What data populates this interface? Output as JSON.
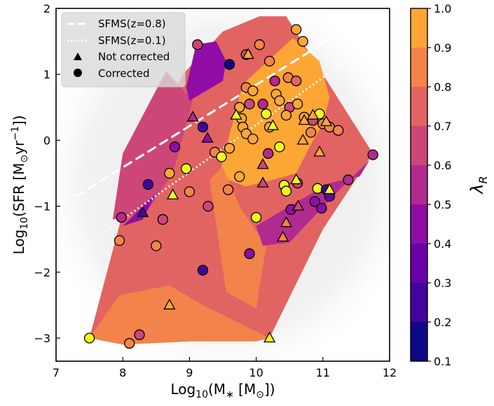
{
  "chart_data": {
    "type": "scatter",
    "xlabel": "Log10(M* [M⊙])",
    "ylabel": "Log10(SFR [M⊙yr⁻¹])",
    "xlim": [
      7,
      12
    ],
    "ylim": [
      -3.35,
      2
    ],
    "x_ticks": [
      "7",
      "8",
      "9",
      "10",
      "11",
      "12"
    ],
    "y_ticks": [
      "−3",
      "−2",
      "−1",
      "0",
      "1",
      "2"
    ],
    "x_tick_values": [
      7,
      8,
      9,
      10,
      11,
      12
    ],
    "y_tick_values": [
      -3,
      -2,
      -1,
      0,
      1,
      2
    ],
    "colorbar": {
      "label": "λR",
      "range": [
        0.1,
        1.0
      ],
      "ticks": [
        "0.1",
        "0.2",
        "0.3",
        "0.4",
        "0.5",
        "0.6",
        "0.7",
        "0.8",
        "0.9",
        "1.0"
      ],
      "tick_values": [
        0.1,
        0.2,
        0.3,
        0.4,
        0.5,
        0.6,
        0.7,
        0.8,
        0.9,
        1.0
      ],
      "levels": [
        {
          "from": 0.1,
          "to": 0.2,
          "color": "#0d0887"
        },
        {
          "from": 0.2,
          "to": 0.3,
          "color": "#41049d"
        },
        {
          "from": 0.3,
          "to": 0.4,
          "color": "#6a00a8"
        },
        {
          "from": 0.4,
          "to": 0.5,
          "color": "#8f0da4"
        },
        {
          "from": 0.5,
          "to": 0.6,
          "color": "#b12a90"
        },
        {
          "from": 0.6,
          "to": 0.7,
          "color": "#cc4778"
        },
        {
          "from": 0.7,
          "to": 0.8,
          "color": "#e16462"
        },
        {
          "from": 0.8,
          "to": 0.9,
          "color": "#f2844b"
        },
        {
          "from": 0.9,
          "to": 1.0,
          "color": "#fca636"
        },
        {
          "from": 1.0,
          "to": 1.1,
          "color": "#f0f921"
        }
      ]
    },
    "legend": {
      "placement": "top-left",
      "entries": [
        "SFMS(z=0.8)",
        "SFMS(z=0.1)",
        "Not corrected",
        "Corrected"
      ]
    },
    "lines": [
      {
        "name": "SFMS(z=0.8)",
        "style": "dashed",
        "x": [
          7.3,
          11.45
        ],
        "y": [
          -0.85,
          1.75
        ]
      },
      {
        "name": "SFMS(z=0.1)",
        "style": "dotted",
        "x": [
          7.3,
          11.6
        ],
        "y": [
          -1.7,
          1.38
        ]
      }
    ],
    "contour_regions": [
      {
        "lambda": 0.7,
        "x": [
          7.5,
          8.0,
          8.9,
          9.5,
          10.05,
          10.45,
          11.75,
          11.0,
          10.2,
          9.2,
          8.7,
          7.5
        ],
        "y": [
          -3.0,
          -1.1,
          1.0,
          1.65,
          1.88,
          1.88,
          -0.2,
          -1.35,
          -3.0,
          -2.95,
          -3.05,
          -3.0
        ]
      },
      {
        "lambda": 0.9,
        "x": [
          9.5,
          9.8,
          10.55,
          10.95,
          11.1,
          11.0,
          10.8,
          10.6,
          10.25,
          9.85,
          9.45,
          9.5
        ],
        "y": [
          -0.3,
          0.85,
          1.55,
          1.2,
          0.65,
          0.25,
          -0.1,
          -0.5,
          -0.6,
          -0.7,
          -0.55,
          -0.3
        ]
      },
      {
        "lambda": 0.8,
        "x": [
          9.3,
          9.5,
          9.75,
          10.15,
          10.0,
          9.55,
          9.3
        ],
        "y": [
          -0.6,
          -0.4,
          -1.0,
          -1.6,
          -2.55,
          -2.3,
          -0.6
        ]
      },
      {
        "lambda": 0.5,
        "x": [
          10.0,
          10.5,
          11.1,
          11.55,
          11.7,
          11.2,
          10.5,
          10.1,
          10.0
        ],
        "y": [
          -1.3,
          -1.0,
          -0.65,
          -0.55,
          -0.3,
          -0.8,
          -1.55,
          -1.6,
          -1.3
        ]
      },
      {
        "lambda": 0.6,
        "x": [
          7.85,
          8.35,
          8.75,
          9.05,
          8.65,
          8.0,
          7.85
        ],
        "y": [
          -1.2,
          -1.1,
          -0.5,
          0.6,
          1.05,
          -0.2,
          -1.2
        ]
      },
      {
        "lambda": 0.4,
        "x": [
          8.95,
          9.1,
          9.4,
          9.55,
          9.5,
          9.0,
          8.95
        ],
        "y": [
          0.8,
          1.45,
          1.5,
          1.2,
          0.9,
          0.6,
          0.8
        ]
      },
      {
        "lambda": 0.4,
        "x": [
          8.0,
          8.5,
          8.3,
          8.0
        ],
        "y": [
          -1.3,
          -0.8,
          -1.2,
          -1.3
        ]
      },
      {
        "lambda": 0.8,
        "x": [
          7.5,
          7.95,
          8.7,
          9.2,
          10.2,
          10.0,
          9.0,
          8.0,
          7.5
        ],
        "y": [
          -3.0,
          -2.35,
          -2.2,
          -2.5,
          -3.0,
          -3.05,
          -3.05,
          -3.1,
          -3.0
        ]
      }
    ],
    "corrected": [
      {
        "x": 7.5,
        "y": -3.0,
        "lambda": 1.0
      },
      {
        "x": 8.1,
        "y": -3.08,
        "lambda": 0.85
      },
      {
        "x": 8.25,
        "y": -2.95,
        "lambda": 0.65
      },
      {
        "x": 7.95,
        "y": -1.52,
        "lambda": 0.8
      },
      {
        "x": 7.98,
        "y": -1.17,
        "lambda": 0.5
      },
      {
        "x": 8.5,
        "y": -1.6,
        "lambda": 0.8
      },
      {
        "x": 8.6,
        "y": -1.2,
        "lambda": 0.6
      },
      {
        "x": 8.38,
        "y": -0.67,
        "lambda": 0.2
      },
      {
        "x": 8.7,
        "y": -0.5,
        "lambda": 0.9
      },
      {
        "x": 8.95,
        "y": -0.43,
        "lambda": 1.0
      },
      {
        "x": 9.0,
        "y": -0.78,
        "lambda": 0.8
      },
      {
        "x": 8.78,
        "y": -0.1,
        "lambda": 0.45
      },
      {
        "x": 9.2,
        "y": 0.2,
        "lambda": 0.2
      },
      {
        "x": 9.28,
        "y": -1.0,
        "lambda": 0.6
      },
      {
        "x": 9.2,
        "y": -1.97,
        "lambda": 0.25
      },
      {
        "x": 9.12,
        "y": 1.45,
        "lambda": 0.6
      },
      {
        "x": 9.6,
        "y": 1.15,
        "lambda": 0.15
      },
      {
        "x": 9.9,
        "y": -1.72,
        "lambda": 0.4
      },
      {
        "x": 10.0,
        "y": -1.17,
        "lambda": 1.0
      },
      {
        "x": 9.58,
        "y": -0.75,
        "lambda": 0.8
      },
      {
        "x": 9.6,
        "y": -0.12,
        "lambda": 0.9
      },
      {
        "x": 9.38,
        "y": -0.18,
        "lambda": 0.8
      },
      {
        "x": 9.48,
        "y": -0.25,
        "lambda": 1.0
      },
      {
        "x": 9.75,
        "y": -0.55,
        "lambda": 0.9
      },
      {
        "x": 9.85,
        "y": 1.3,
        "lambda": 0.65
      },
      {
        "x": 10.05,
        "y": 1.45,
        "lambda": 0.8
      },
      {
        "x": 9.85,
        "y": 0.8,
        "lambda": 0.8
      },
      {
        "x": 9.9,
        "y": 0.55,
        "lambda": 0.65
      },
      {
        "x": 9.75,
        "y": 0.5,
        "lambda": 0.9
      },
      {
        "x": 9.78,
        "y": 0.33,
        "lambda": 0.9
      },
      {
        "x": 9.8,
        "y": 0.2,
        "lambda": 0.9
      },
      {
        "x": 9.85,
        "y": 0.1,
        "lambda": 0.9
      },
      {
        "x": 9.95,
        "y": 0.75,
        "lambda": 0.9
      },
      {
        "x": 10.1,
        "y": 0.55,
        "lambda": 0.5
      },
      {
        "x": 10.15,
        "y": 0.4,
        "lambda": 1.0
      },
      {
        "x": 10.2,
        "y": 0.2,
        "lambda": 0.9
      },
      {
        "x": 10.18,
        "y": -0.2,
        "lambda": 0.5
      },
      {
        "x": 9.95,
        "y": 0.02,
        "lambda": 0.9
      },
      {
        "x": 10.2,
        "y": 1.2,
        "lambda": 0.8
      },
      {
        "x": 10.28,
        "y": 0.9,
        "lambda": 0.5
      },
      {
        "x": 10.3,
        "y": 0.7,
        "lambda": 0.9
      },
      {
        "x": 10.35,
        "y": 0.6,
        "lambda": 0.9
      },
      {
        "x": 10.48,
        "y": 0.95,
        "lambda": 0.85
      },
      {
        "x": 10.5,
        "y": 0.5,
        "lambda": 0.6
      },
      {
        "x": 10.45,
        "y": 0.38,
        "lambda": 0.9
      },
      {
        "x": 10.62,
        "y": 0.55,
        "lambda": 0.9
      },
      {
        "x": 10.6,
        "y": 1.68,
        "lambda": 0.95
      },
      {
        "x": 10.7,
        "y": 1.5,
        "lambda": 0.95
      },
      {
        "x": 10.6,
        "y": 0.9,
        "lambda": 0.7
      },
      {
        "x": 10.72,
        "y": 0.35,
        "lambda": 0.9
      },
      {
        "x": 10.82,
        "y": 0.12,
        "lambda": 0.8
      },
      {
        "x": 10.85,
        "y": 0.3,
        "lambda": 0.65
      },
      {
        "x": 10.95,
        "y": 0.4,
        "lambda": 1.0
      },
      {
        "x": 11.0,
        "y": 0.25,
        "lambda": 0.8
      },
      {
        "x": 11.1,
        "y": 0.2,
        "lambda": 0.8
      },
      {
        "x": 11.23,
        "y": 0.15,
        "lambda": 0.85
      },
      {
        "x": 10.35,
        "y": -0.1,
        "lambda": 1.0
      },
      {
        "x": 10.42,
        "y": -0.68,
        "lambda": 1.0
      },
      {
        "x": 10.45,
        "y": -0.77,
        "lambda": 1.0
      },
      {
        "x": 10.52,
        "y": -1.05,
        "lambda": 0.45
      },
      {
        "x": 10.62,
        "y": -0.65,
        "lambda": 0.6
      },
      {
        "x": 10.92,
        "y": -0.73,
        "lambda": 1.0
      },
      {
        "x": 10.88,
        "y": -0.93,
        "lambda": 0.4
      },
      {
        "x": 10.98,
        "y": -1.03,
        "lambda": 0.4
      },
      {
        "x": 11.05,
        "y": -0.75,
        "lambda": 0.2
      },
      {
        "x": 11.1,
        "y": -0.85,
        "lambda": 0.3
      },
      {
        "x": 11.38,
        "y": -0.6,
        "lambda": 0.55
      },
      {
        "x": 11.75,
        "y": -0.22,
        "lambda": 0.55
      }
    ],
    "not_corrected": [
      {
        "x": 8.7,
        "y": -2.5,
        "lambda": 0.9
      },
      {
        "x": 10.2,
        "y": -3.0,
        "lambda": 1.0
      },
      {
        "x": 8.3,
        "y": -1.1,
        "lambda": 0.2
      },
      {
        "x": 8.75,
        "y": -0.83,
        "lambda": 1.0
      },
      {
        "x": 9.05,
        "y": 0.35,
        "lambda": 0.5
      },
      {
        "x": 9.27,
        "y": 0.03,
        "lambda": 0.45
      },
      {
        "x": 9.7,
        "y": 0.38,
        "lambda": 1.0
      },
      {
        "x": 9.88,
        "y": 1.3,
        "lambda": 0.95
      },
      {
        "x": 10.1,
        "y": -0.37,
        "lambda": 0.6
      },
      {
        "x": 10.1,
        "y": -0.65,
        "lambda": 0.6
      },
      {
        "x": 10.25,
        "y": 0.22,
        "lambda": 1.0
      },
      {
        "x": 10.45,
        "y": -1.25,
        "lambda": 0.8
      },
      {
        "x": 10.4,
        "y": -1.47,
        "lambda": 0.8
      },
      {
        "x": 10.6,
        "y": -0.6,
        "lambda": 1.0
      },
      {
        "x": 10.63,
        "y": -1.0,
        "lambda": 0.6
      },
      {
        "x": 10.85,
        "y": 0.38,
        "lambda": 0.9
      },
      {
        "x": 10.7,
        "y": 0.0,
        "lambda": 0.9
      },
      {
        "x": 10.95,
        "y": -0.18,
        "lambda": 0.9
      },
      {
        "x": 11.1,
        "y": -0.75,
        "lambda": 1.0
      },
      {
        "x": 10.72,
        "y": 0.3,
        "lambda": 0.9
      },
      {
        "x": 11.05,
        "y": 0.28,
        "lambda": 0.9
      }
    ]
  }
}
